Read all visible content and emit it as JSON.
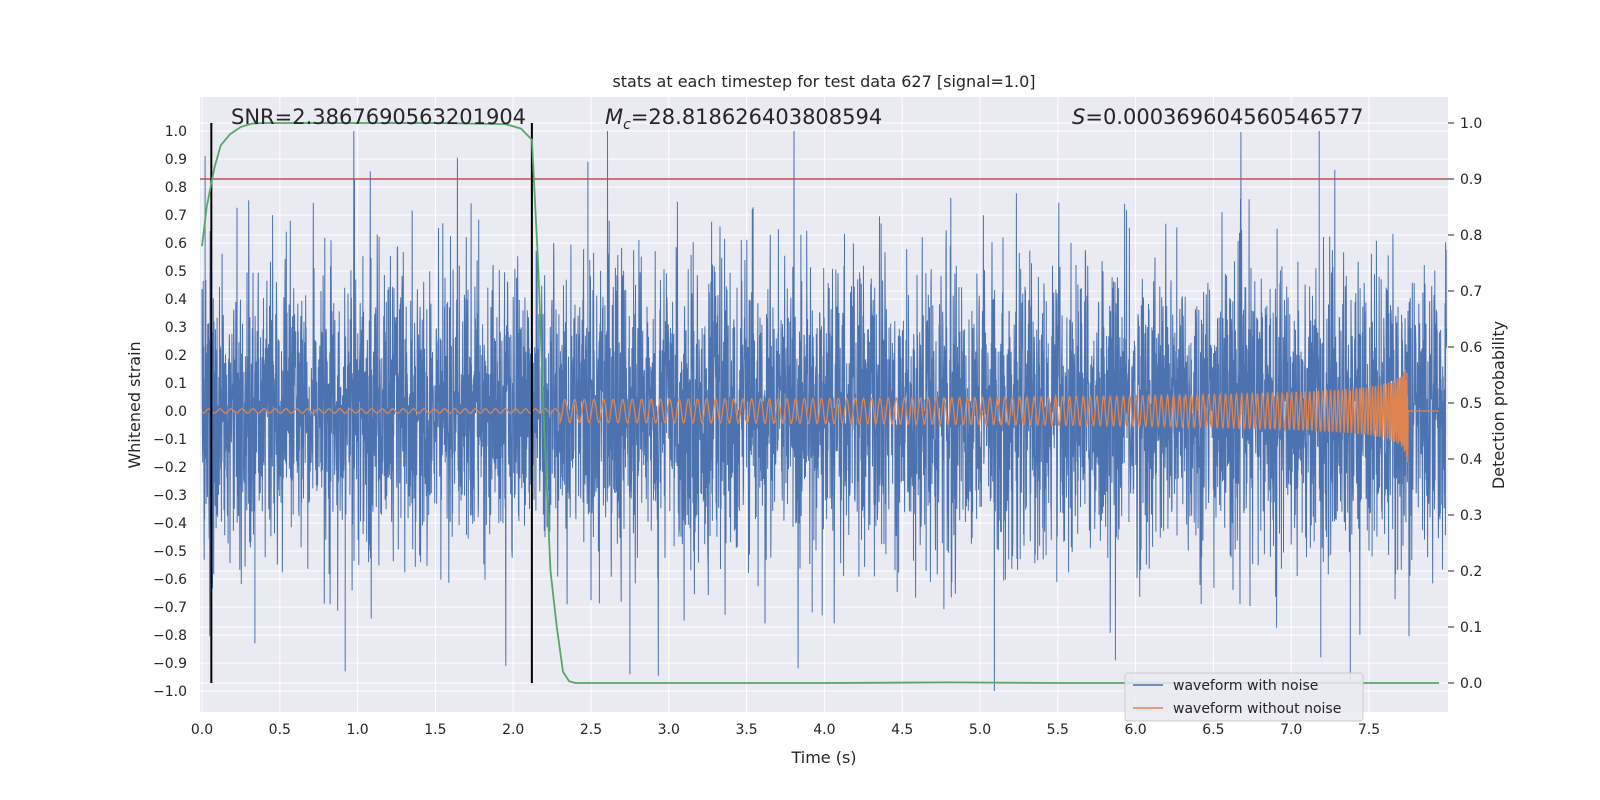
{
  "chart_data": {
    "type": "line",
    "title": "stats at each timestep for test data 627 [signal=1.0]",
    "xlabel": "Time (s)",
    "ylabel_left": "Whitened strain",
    "ylabel_right": "Detection probability",
    "xlim": [
      0.0,
      8.0
    ],
    "ylim_left": [
      -1.05,
      1.05
    ],
    "ylim_right": [
      -0.045,
      1.045
    ],
    "x_ticks": [
      "0.0",
      "0.5",
      "1.0",
      "1.5",
      "2.0",
      "2.5",
      "3.0",
      "3.5",
      "4.0",
      "4.5",
      "5.0",
      "5.5",
      "6.0",
      "6.5",
      "7.0",
      "7.5"
    ],
    "y_ticks_left": [
      "1.0",
      "0.9",
      "0.8",
      "0.7",
      "0.6",
      "0.5",
      "0.4",
      "0.3",
      "0.2",
      "0.1",
      "0.0",
      "-0.1",
      "-0.2",
      "-0.3",
      "-0.4",
      "-0.5",
      "-0.6",
      "-0.7",
      "-0.8",
      "-0.9",
      "-1.0"
    ],
    "y_ticks_right": [
      "1.0",
      "0.9",
      "0.8",
      "0.7",
      "0.6",
      "0.5",
      "0.4",
      "0.3",
      "0.2",
      "0.1",
      "0.0"
    ],
    "grid": true,
    "annotations": {
      "snr": "SNR=2.3867690563201904",
      "mc_symbol": "M",
      "mc_sub": "c",
      "mc_value": "=28.818626403808594",
      "s_symbol": "S",
      "s_value": "=0.000369604560546577"
    },
    "threshold_line": {
      "axis": "right",
      "y": 0.9,
      "color": "#c44e52"
    },
    "vertical_markers": {
      "x": [
        0.06,
        2.12
      ],
      "color": "#000000"
    },
    "series": [
      {
        "name": "waveform with noise",
        "color": "#4c72b0",
        "kind": "noise",
        "axis": "left",
        "amplitude_envelope": 0.62,
        "notable_peaks": [
          {
            "x": 0.02,
            "y": 0.91
          },
          {
            "x": 0.98,
            "y": 0.83
          },
          {
            "x": 2.48,
            "y": 0.89
          },
          {
            "x": 7.18,
            "y": 1.0
          },
          {
            "x": 0.92,
            "y": -0.93
          },
          {
            "x": 2.75,
            "y": -0.94
          },
          {
            "x": 7.38,
            "y": -0.96
          },
          {
            "x": 0.34,
            "y": -0.83
          },
          {
            "x": 5.87,
            "y": -0.89
          },
          {
            "x": 7.19,
            "y": -0.88
          }
        ]
      },
      {
        "name": "waveform without noise",
        "color": "#dd8452",
        "kind": "chirp",
        "axis": "left",
        "t_merge": 7.75,
        "peak_amplitude": 0.19
      },
      {
        "name": "detection probability",
        "color": "#55a868",
        "kind": "line",
        "axis": "right",
        "x": [
          0.0,
          0.03,
          0.08,
          0.12,
          0.18,
          0.25,
          0.32,
          0.4,
          0.5,
          1.0,
          1.5,
          1.95,
          2.05,
          2.12,
          2.16,
          2.2,
          2.24,
          2.28,
          2.32,
          2.36,
          2.4,
          3.0,
          4.0,
          4.8,
          5.5,
          6.0,
          6.5,
          7.0,
          7.5,
          7.95
        ],
        "y": [
          0.78,
          0.85,
          0.92,
          0.96,
          0.98,
          0.993,
          0.999,
          1.0,
          1.0,
          1.0,
          1.0,
          0.998,
          0.99,
          0.97,
          0.75,
          0.45,
          0.2,
          0.1,
          0.02,
          0.003,
          0.0,
          0.0,
          0.0,
          0.001,
          0.0,
          0.0,
          0.0,
          0.0,
          0.0,
          0.0
        ]
      }
    ],
    "legend": {
      "placement": "lower-right",
      "entries": [
        "waveform with noise",
        "waveform without noise"
      ]
    }
  }
}
